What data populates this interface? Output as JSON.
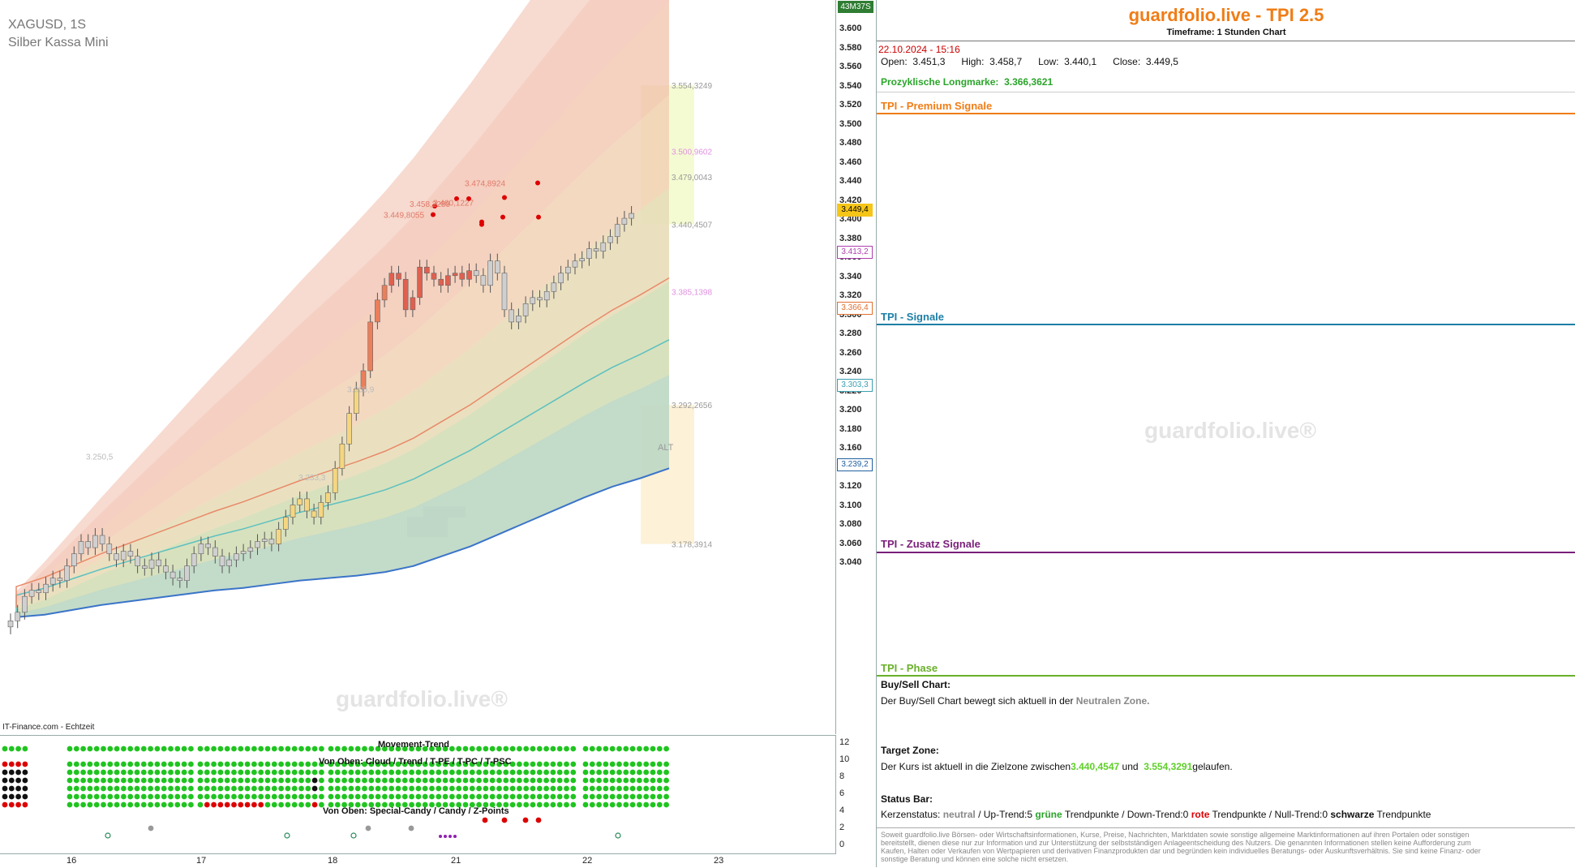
{
  "chart": {
    "symbol": "XAGUSD, 1S",
    "instrument": "Silber Kassa Mini",
    "source": "IT-Finance.com - Echtzeit",
    "watermark": "guardfolio.live®",
    "clock": "43M37S",
    "y_ticks": [
      "3.600",
      "3.580",
      "3.560",
      "3.540",
      "3.520",
      "3.500",
      "3.480",
      "3.460",
      "3.440",
      "3.420",
      "3.400",
      "3.380",
      "3.360",
      "3.340",
      "3.320",
      "3.300",
      "3.280",
      "3.260",
      "3.240",
      "3.220",
      "3.200",
      "3.180",
      "3.160",
      "3.140",
      "3.120",
      "3.100",
      "3.080",
      "3.060",
      "3.040"
    ],
    "x_ticks": [
      "16",
      "17",
      "18",
      "21",
      "22",
      "23"
    ],
    "price_labels": [
      {
        "text": "3.449,4",
        "color": "#f5c518",
        "bg": "#f5c518",
        "fg": "#000"
      },
      {
        "text": "3.413,2",
        "color": "#b03fb0",
        "bg": "#fff",
        "fg": "#b03fb0"
      },
      {
        "text": "3.366,4",
        "color": "#e07030",
        "bg": "#fff",
        "fg": "#e07030"
      },
      {
        "text": "3.303,3",
        "color": "#3aa0b0",
        "bg": "#fff",
        "fg": "#3aa0b0"
      },
      {
        "text": "3.239,2",
        "color": "#2060a0",
        "bg": "#fff",
        "fg": "#2060a0"
      }
    ],
    "zone_labels": [
      "3.554,3249",
      "3.500,9602",
      "3.479,0043",
      "3.440,4507",
      "3.385,1398",
      "3.292,2656",
      "3.178,3914"
    ],
    "zone_alt": "ALT",
    "peak_labels": [
      "3.474,8924",
      "3.460,1227",
      "3.458,2289",
      "3.449,8055"
    ],
    "low_labels": [
      "3.305,9",
      "3.250,5",
      "3.233,3"
    ]
  },
  "indicator": {
    "title_top": "Movement-Trend",
    "title_mid": "Von Oben: Cloud / Trend / T-PE / T-PC / T-PSC",
    "title_bot": "Von Oben: Special-Candy / Candy / Z-Points",
    "axis_ticks": [
      "12",
      "10",
      "8",
      "6",
      "4",
      "2",
      "0"
    ]
  },
  "panel": {
    "title": "guardfolio.live - TPI 2.5",
    "subtitle": "Timeframe: 1 Stunden Chart",
    "datetime": "22.10.2024 - 15:16",
    "ohlc": "Open:  3.451,3      High:  3.458,7      Low:  3.440,1      Close:  3.449,5",
    "long_label": "Prozyklische Longmarke:",
    "long_value": "3.366,3621",
    "sections": [
      "TPI - Premium Signale",
      "TPI - Signale",
      "TPI - Zusatz Signale",
      "TPI - Phase"
    ],
    "watermark": "guardfolio.live®",
    "buysell_h": "Buy/Sell Chart:",
    "buysell_text": "Der Buy/Sell Chart bewegt sich aktuell in der",
    "buysell_zone": "Neutralen Zone.",
    "target_h": "Target Zone:",
    "target_text": "Der Kurs ist aktuell in die Zielzone zwischen",
    "target_v1": "3.440,4547",
    "target_und": "und",
    "target_v2": "3.554,3291",
    "target_end": "gelaufen.",
    "status_h": "Status Bar:",
    "status_pre": "Kerzenstatus:",
    "status_neutral": "neutral",
    "status_up": "/ Up-Trend:5",
    "status_gruene": "grüne",
    "status_tp1": "Trendpunkte",
    "status_down": "/ Down-Trend:0",
    "status_rote": "rote",
    "status_tp2": "Trendpunkte",
    "status_null": "/ Null-Trend:0",
    "status_schwarze": "schwarze",
    "status_tp3": "Trendpunkte",
    "disclaimer": "Soweit guardfolio.live Börsen- oder Wirtschaftsinformationen, Kurse, Preise, Nachrichten, Marktdaten sowie sonstige allgemeine Marktinformationen auf ihren Portalen oder sonstigen bereitstellt, dienen diese nur zur Information und zur Unterstützung der selbstständigen Anlageentscheidung des Nutzers. Die genannten Informationen stellen keine Aufforderung zum Kaufen, Halten oder Verkaufen von Wertpapieren und derivativen Finanzprodukten dar und begründen kein individuelles Beratungs- oder Auskunftsverhältnis. Sie sind keine Finanz- oder sonstige Beratung und können eine solche nicht ersetzen."
  }
}
